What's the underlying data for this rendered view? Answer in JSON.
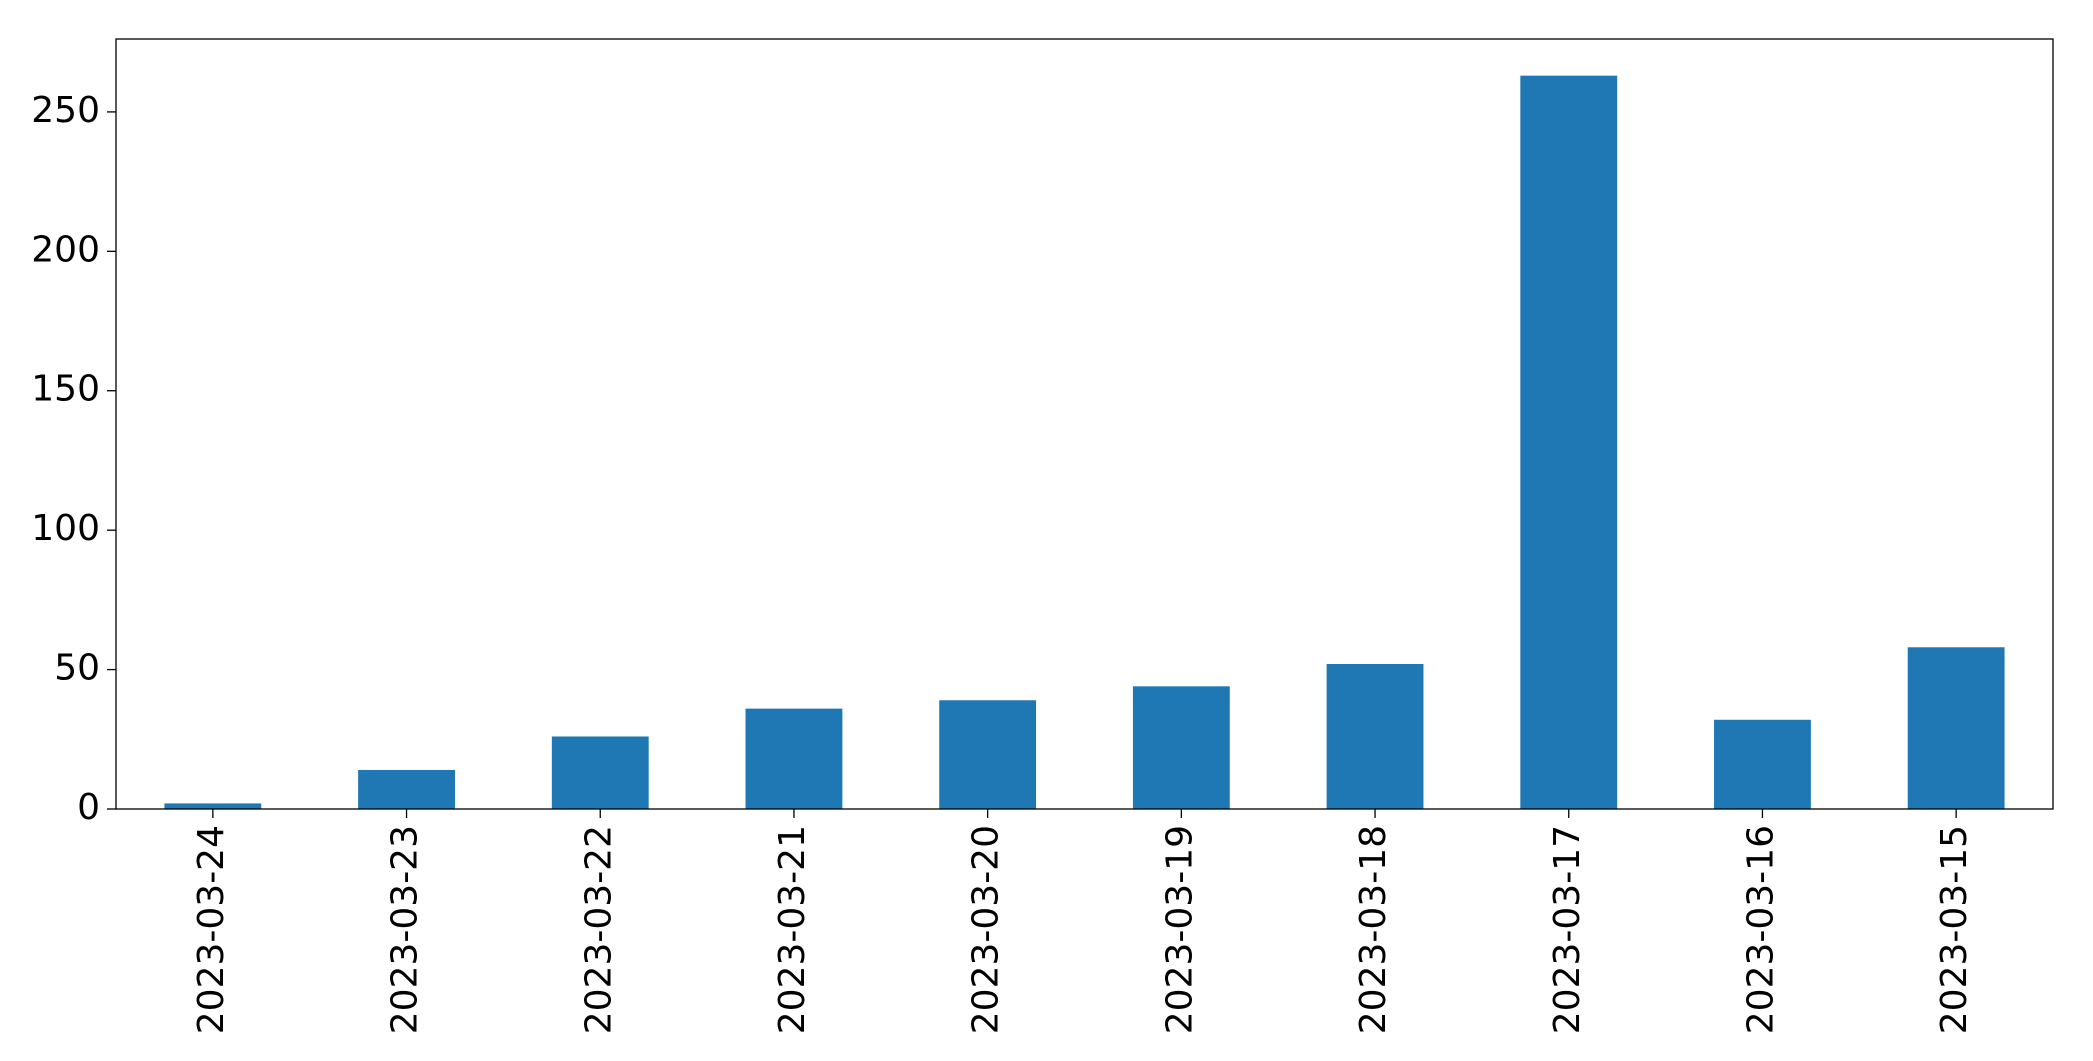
{
  "chart_data": {
    "type": "bar",
    "categories": [
      "2023-03-24",
      "2023-03-23",
      "2023-03-22",
      "2023-03-21",
      "2023-03-20",
      "2023-03-19",
      "2023-03-18",
      "2023-03-17",
      "2023-03-16",
      "2023-03-15"
    ],
    "values": [
      2,
      14,
      26,
      36,
      39,
      44,
      52,
      263,
      32,
      58
    ],
    "color": "#1f77b4",
    "ylim": [
      0,
      276.15
    ],
    "yticks": [
      0,
      50,
      100,
      150,
      200,
      250
    ],
    "grid": false
  }
}
